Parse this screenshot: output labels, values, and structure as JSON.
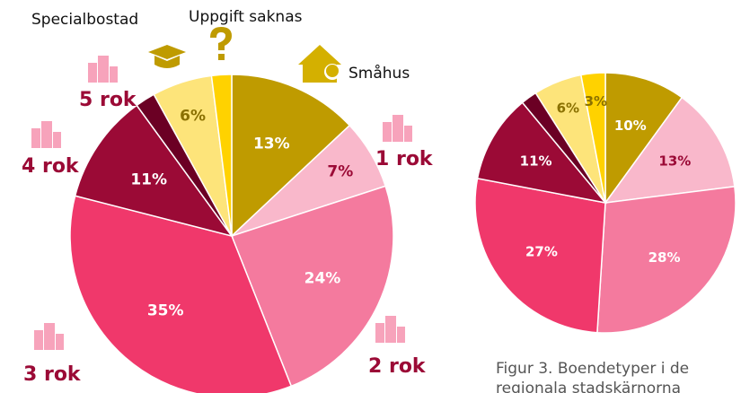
{
  "chart_data": [
    {
      "type": "pie",
      "categories": [
        "Småhus",
        "1 rok",
        "2 rok",
        "3 rok",
        "4 rok",
        "5 rok",
        "Specialbostad",
        "Uppgift saknas"
      ],
      "values": [
        13,
        7,
        24,
        35,
        11,
        2,
        6,
        2
      ],
      "colors": [
        "#bf9b00",
        "#f9b8cb",
        "#f47a9e",
        "#f0386b",
        "#9b0a36",
        "#6b0024",
        "#fde47a",
        "#ffd200"
      ]
    },
    {
      "type": "pie",
      "values": [
        10,
        13,
        28,
        27,
        11,
        2,
        6,
        3
      ],
      "colors": [
        "#bf9b00",
        "#f9b8cb",
        "#f47a9e",
        "#f0386b",
        "#9b0a36",
        "#6b0024",
        "#fde47a",
        "#ffd200"
      ]
    }
  ],
  "caption": [
    "Figur 3. Boendetyper i de",
    "regionala stadskärnorna"
  ]
}
